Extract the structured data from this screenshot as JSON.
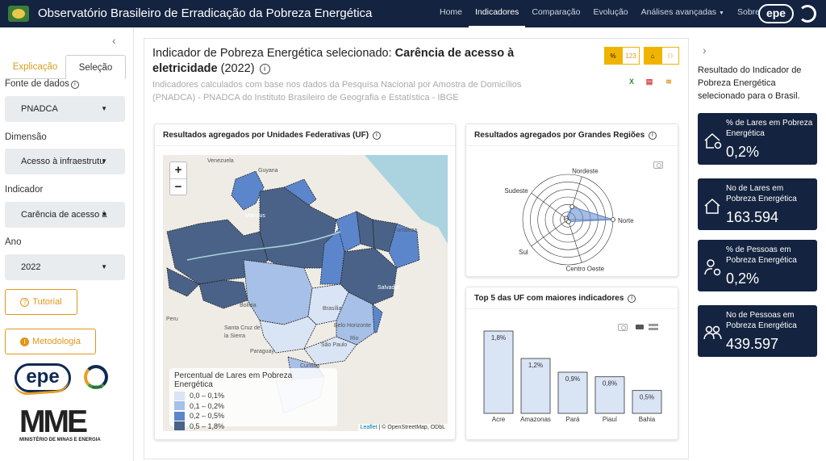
{
  "header": {
    "app_title": "Observatório Brasileiro de Erradicação da Pobreza Energética",
    "nav": [
      {
        "label": "Home",
        "active": false
      },
      {
        "label": "Indicadores",
        "active": true
      },
      {
        "label": "Comparação",
        "active": false
      },
      {
        "label": "Evolução",
        "active": false
      },
      {
        "label": "Análises avançadas",
        "active": false,
        "dropdown": true
      },
      {
        "label": "Sobre",
        "active": false
      }
    ],
    "logo_text": "epe"
  },
  "sidebar": {
    "collapse_icon": "chevron-left-icon",
    "tabs": [
      {
        "label": "Explicação",
        "active": false
      },
      {
        "label": "Seleção",
        "active": true
      }
    ],
    "fields": [
      {
        "label": "Fonte de dados",
        "value": "PNADCA",
        "has_info": true
      },
      {
        "label": "Dimensão",
        "value": "Acesso à infraestrutu",
        "has_info": false
      },
      {
        "label": "Indicador",
        "value": "Carência de acesso à",
        "has_info": false
      },
      {
        "label": "Ano",
        "value": "2022",
        "has_info": false
      }
    ],
    "tutorial_label": "Tutorial",
    "metodologia_label": "Metodologia",
    "epe_logo": "epe",
    "anos_label": "anos",
    "mme_logo": "MME",
    "mme_sub": "MINISTÉRIO DE MINAS E ENERGIA"
  },
  "main": {
    "title_prefix": "Indicador de Pobreza Energética selecionado: ",
    "title_bold": "Carência de acesso à eletricidade",
    "title_suffix": " (2022)",
    "subtitle": "Indicadores calculados com base nos dados da Pesquisa Nacional por Amostra de Domicílios (PNADCA) - PNADCA do Instituto Brasileiro de Geografia e Estatística - IBGE",
    "toggle_percent": "%",
    "toggle_count": "123",
    "export_icons": [
      "excel-icon",
      "pdf-icon",
      "database-icon"
    ],
    "colors": {
      "accent": "#f0b400",
      "navy": "#14233f",
      "orange": "#e0961a"
    }
  },
  "map_card": {
    "title": "Resultados agregados por Unidades Federativas (UF)",
    "zoom_in": "+",
    "zoom_out": "−",
    "attribution_link": "Leaflet",
    "attribution_rest": " | © OpenStreetMap, ODbL",
    "legend_title": "Percentual de Lares em Pobreza Energética",
    "legend_items": [
      {
        "label": "0,0 – 0,1%",
        "color": "#d9e4f5"
      },
      {
        "label": "0,1 – 0,2%",
        "color": "#a7c0e8"
      },
      {
        "label": "0,2 – 0,5%",
        "color": "#5b86cc"
      },
      {
        "label": "0,5 – 1,8%",
        "color": "#4a6287"
      }
    ],
    "places": [
      "Venezuela",
      "Guyana",
      "Manaus",
      "Fortaleza",
      "Salvador",
      "Brasília",
      "Belo Horizonte",
      "Rio",
      "Bolivia",
      "Santa Cruz de la Sierra",
      "Paraguay",
      "São Paulo",
      "Curitiba",
      "Peru"
    ]
  },
  "radar_card": {
    "title": "Resultados agregados por Grandes Regiões",
    "axes": [
      "Norte",
      "Nordeste",
      "Sudeste",
      "Sul",
      "Centro Oeste"
    ]
  },
  "top5_card": {
    "title": "Top 5 das UF com maiores indicadores"
  },
  "chart_data": [
    {
      "type": "radar",
      "categories": [
        "Norte",
        "Nordeste",
        "Sudeste",
        "Sul",
        "Centro Oeste"
      ],
      "values": [
        1.0,
        0.3,
        0.05,
        0.03,
        0.05
      ]
    },
    {
      "type": "bar",
      "categories": [
        "Acre",
        "Amazonas",
        "Pará",
        "Piauí",
        "Bahia"
      ],
      "values": [
        1.8,
        1.2,
        0.9,
        0.8,
        0.5
      ],
      "data_labels": [
        "1,8%",
        "1,2%",
        "0,9%",
        "0,8%",
        "0,5%"
      ],
      "ylim": [
        0,
        1.8
      ]
    }
  ],
  "right": {
    "collapse_icon": "chevron-right-icon",
    "description": "Resultado do Indicador de Pobreza Energética selecionado para o Brasil.",
    "kpis": [
      {
        "label": "% de Lares em Pobreza Energética",
        "value": "0,2%",
        "icon": "house-gear-icon"
      },
      {
        "label": "No de Lares em Pobreza Energética",
        "value": "163.594",
        "icon": "house-icon"
      },
      {
        "label": "% de Pessoas em Pobreza Energética",
        "value": "0,2%",
        "icon": "person-gear-icon"
      },
      {
        "label": "No de Pessoas em Pobreza Energética",
        "value": "439.597",
        "icon": "people-icon"
      }
    ]
  }
}
